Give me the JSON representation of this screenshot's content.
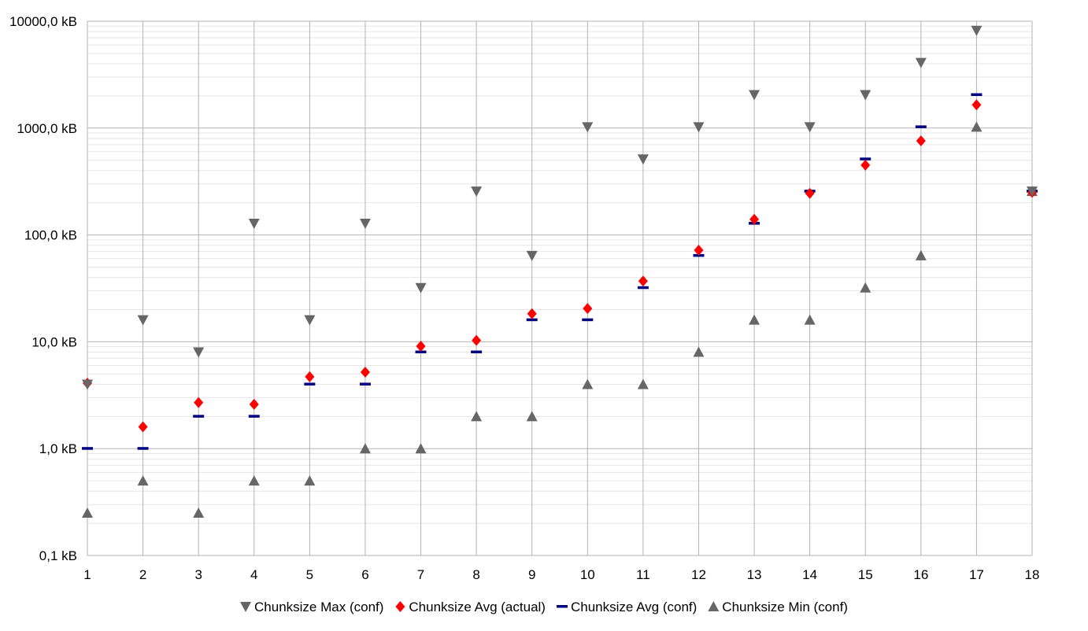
{
  "chart_data": {
    "type": "scatter",
    "title": "",
    "xlabel": "",
    "ylabel": "",
    "y_scale": "log",
    "ylim": [
      0.1,
      10000
    ],
    "xlim": [
      1,
      18
    ],
    "grid": true,
    "legend_position": "bottom",
    "x": [
      1,
      2,
      3,
      4,
      5,
      6,
      7,
      8,
      9,
      10,
      11,
      12,
      13,
      14,
      15,
      16,
      17,
      18
    ],
    "x_tick_labels": [
      "1",
      "2",
      "3",
      "4",
      "5",
      "6",
      "7",
      "8",
      "9",
      "10",
      "11",
      "12",
      "13",
      "14",
      "15",
      "16",
      "17",
      "18"
    ],
    "y_ticks": [
      0.1,
      1,
      10,
      100,
      1000,
      10000
    ],
    "y_tick_labels": [
      "0,1 kB",
      "1,0 kB",
      "10,0 kB",
      "100,0 kB",
      "1000,0 kB",
      "10000,0 kB"
    ],
    "series": [
      {
        "name": "Chunksize Max (conf)",
        "marker": "triangle-down",
        "color": "#666666",
        "values": [
          4,
          16,
          8,
          128,
          16,
          128,
          32,
          256,
          64,
          1024,
          512,
          1024,
          2048,
          1024,
          2048,
          4096,
          8192,
          256
        ]
      },
      {
        "name": "Chunksize Avg (actual)",
        "marker": "diamond",
        "color": "#ff0000",
        "values": [
          4.1,
          1.6,
          2.7,
          2.6,
          4.7,
          5.2,
          9.1,
          10.3,
          18.3,
          20.5,
          37,
          72,
          140,
          245,
          450,
          760,
          1650,
          250
        ]
      },
      {
        "name": "Chunksize Avg (conf)",
        "marker": "dash",
        "color": "#000080",
        "values": [
          1,
          1,
          2,
          2,
          4,
          4,
          8,
          8,
          16,
          16,
          32,
          64,
          128,
          256,
          512,
          1024,
          2048,
          256
        ]
      },
      {
        "name": "Chunksize Min (conf)",
        "marker": "triangle-up",
        "color": "#666666",
        "values": [
          0.25,
          0.5,
          0.25,
          0.5,
          0.5,
          1,
          1,
          2,
          2,
          4,
          4,
          8,
          16,
          16,
          32,
          64,
          1024,
          256
        ]
      }
    ]
  }
}
